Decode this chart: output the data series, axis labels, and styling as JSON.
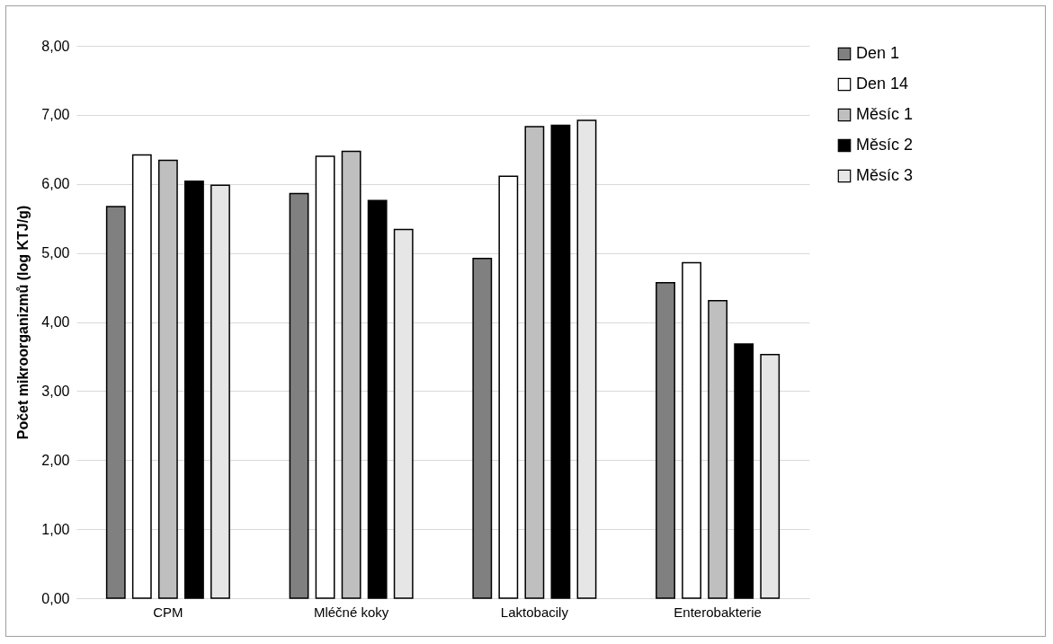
{
  "chart_data": {
    "type": "bar",
    "ylabel": "Počet mikroorganizmů (log KTJ/g)",
    "categories": [
      "CPM",
      "Mléčné koky",
      "Laktobacily",
      "Enterobakterie"
    ],
    "series": [
      {
        "name": "Den 1",
        "color": "#808080",
        "values": [
          5.67,
          5.86,
          4.92,
          4.57
        ]
      },
      {
        "name": "Den 14",
        "color": "#ffffff",
        "values": [
          6.42,
          6.4,
          6.11,
          4.86
        ]
      },
      {
        "name": "Měsíc 1",
        "color": "#bfbfbf",
        "values": [
          6.34,
          6.47,
          6.83,
          4.31
        ]
      },
      {
        "name": "Měsíc 2",
        "color": "#000000",
        "values": [
          6.04,
          5.76,
          6.85,
          3.68
        ]
      },
      {
        "name": "Měsíc 3",
        "color": "#e6e6e6",
        "values": [
          5.98,
          5.34,
          6.92,
          3.53
        ]
      }
    ],
    "ylim": [
      0,
      8
    ],
    "yticks": [
      {
        "value": 0,
        "label": "0,00"
      },
      {
        "value": 1,
        "label": "1,00"
      },
      {
        "value": 2,
        "label": "2,00"
      },
      {
        "value": 3,
        "label": "3,00"
      },
      {
        "value": 4,
        "label": "4,00"
      },
      {
        "value": 5,
        "label": "5,00"
      },
      {
        "value": 6,
        "label": "6,00"
      },
      {
        "value": 7,
        "label": "7,00"
      },
      {
        "value": 8,
        "label": "8,00"
      }
    ],
    "grid": "y",
    "legend": "right"
  }
}
